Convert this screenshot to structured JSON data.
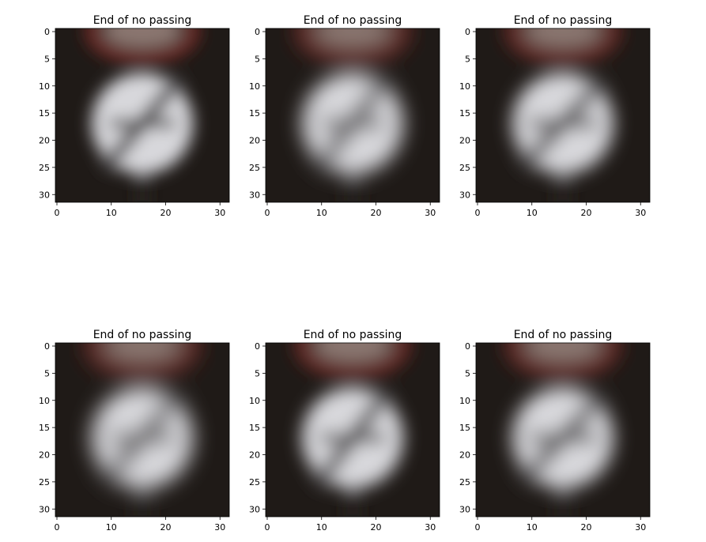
{
  "figure": {
    "background": "#ffffff",
    "panels": [
      {
        "title": "End of no passing",
        "sign": {
          "ring_tilt": 0.0,
          "bar_width": 1.0,
          "blur": 1.6
        }
      },
      {
        "title": "End of no passing",
        "sign": {
          "ring_tilt": -0.05,
          "bar_width": 0.95,
          "blur": 2.0
        }
      },
      {
        "title": "End of no passing",
        "sign": {
          "ring_tilt": 0.05,
          "bar_width": 1.05,
          "blur": 1.8
        }
      },
      {
        "title": "End of no passing",
        "sign": {
          "ring_tilt": 0.0,
          "bar_width": 1.0,
          "blur": 2.1
        }
      },
      {
        "title": "End of no passing",
        "sign": {
          "ring_tilt": -0.05,
          "bar_width": 1.0,
          "blur": 1.7
        }
      },
      {
        "title": "End of no passing",
        "sign": {
          "ring_tilt": 0.05,
          "bar_width": 1.05,
          "blur": 1.9
        }
      }
    ],
    "x_ticks": [
      "0",
      "10",
      "20",
      "30"
    ],
    "y_ticks": [
      "0",
      "5",
      "10",
      "15",
      "20",
      "25",
      "30"
    ],
    "colors": {
      "background_dark": "#1f1a17",
      "ring_red": "#7a2a26",
      "sign_face": "#d8d8dc",
      "sign_shadow": "#8a8a90",
      "stripe_dark": "#2e2b2c"
    }
  }
}
